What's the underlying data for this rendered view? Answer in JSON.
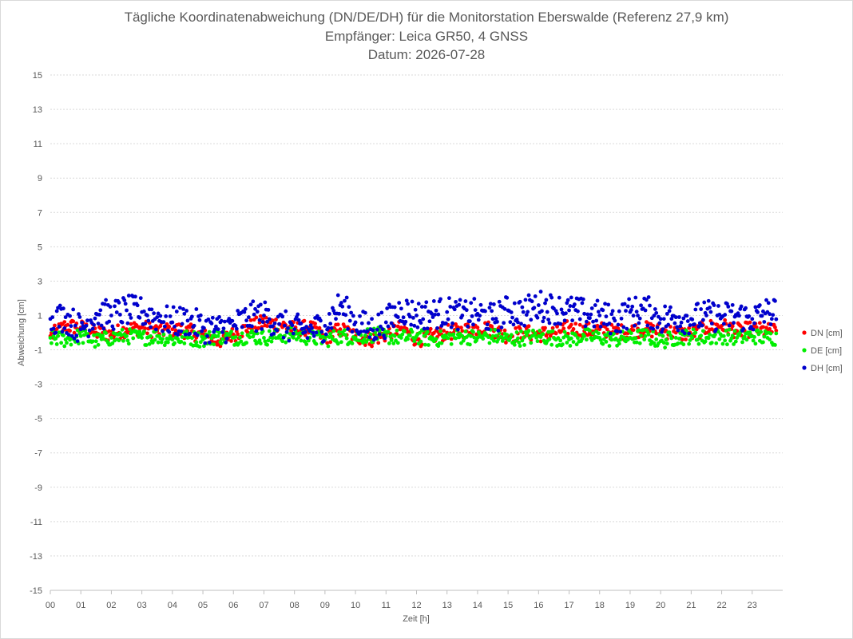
{
  "chart_data": {
    "type": "scatter",
    "title": "Tägliche Koordinatenabweichung (DN/DE/DH) für die Monitorstation Eberswalde (Referenz 27,9 km)",
    "subtitle": "Empfänger: Leica GR50, 4 GNSS",
    "date_line": "Datum: 2026-07-28",
    "xlabel": "Zeit [h]",
    "ylabel": "Abweichung [cm]",
    "xlim": [
      0,
      24
    ],
    "ylim": [
      -15,
      15
    ],
    "y_ticks": [
      15,
      13,
      11,
      9,
      7,
      5,
      3,
      1,
      -1,
      -3,
      -5,
      -7,
      -9,
      -11,
      -13,
      -15
    ],
    "x_tick_labels": [
      "00",
      "01",
      "02",
      "03",
      "04",
      "05",
      "06",
      "07",
      "08",
      "09",
      "10",
      "11",
      "12",
      "13",
      "14",
      "15",
      "16",
      "17",
      "18",
      "19",
      "20",
      "21",
      "22",
      "23"
    ],
    "grid": true,
    "legend_position": "right",
    "series": [
      {
        "name": "DN [cm]",
        "color": "#ff0000",
        "x": [
          0.0,
          0.5,
          1.0,
          1.5,
          2.0,
          2.5,
          3.0,
          3.5,
          4.0,
          4.5,
          5.0,
          5.5,
          6.0,
          6.5,
          7.0,
          7.5,
          8.0,
          8.5,
          9.0,
          9.5,
          10.0,
          10.5,
          11.0,
          11.5,
          12.0,
          12.5,
          13.0,
          13.5,
          14.0,
          14.5,
          15.0,
          15.5,
          16.0,
          16.5,
          17.0,
          17.5,
          18.0,
          18.5,
          19.0,
          19.5,
          20.0,
          20.5,
          21.0,
          21.5,
          22.0,
          22.5,
          23.0,
          23.5
        ],
        "y": [
          -0.2,
          0.4,
          0.3,
          0.0,
          -0.1,
          0.2,
          0.3,
          0.1,
          0.2,
          0.1,
          -0.2,
          -0.5,
          -0.1,
          0.3,
          0.6,
          0.5,
          0.2,
          0.3,
          -0.3,
          0.2,
          -0.2,
          -0.4,
          -0.1,
          0.3,
          -0.4,
          -0.2,
          0.0,
          0.1,
          0.3,
          0.2,
          -0.2,
          0.0,
          -0.1,
          0.0,
          0.3,
          0.1,
          0.2,
          0.0,
          0.1,
          0.2,
          0.1,
          0.0,
          -0.1,
          0.3,
          0.4,
          0.1,
          0.2,
          0.1
        ]
      },
      {
        "name": "DE [cm]",
        "color": "#00ee00",
        "x": [
          0.0,
          0.5,
          1.0,
          1.5,
          2.0,
          2.5,
          3.0,
          3.5,
          4.0,
          4.5,
          5.0,
          5.5,
          6.0,
          6.5,
          7.0,
          7.5,
          8.0,
          8.5,
          9.0,
          9.5,
          10.0,
          10.5,
          11.0,
          11.5,
          12.0,
          12.5,
          13.0,
          13.5,
          14.0,
          14.5,
          15.0,
          15.5,
          16.0,
          16.5,
          17.0,
          17.5,
          18.0,
          18.5,
          19.0,
          19.5,
          20.0,
          20.5,
          21.0,
          21.5,
          22.0,
          22.5,
          23.0,
          23.5
        ],
        "y": [
          -0.3,
          -0.4,
          -0.2,
          -0.5,
          -0.3,
          -0.2,
          -0.3,
          -0.2,
          -0.4,
          -0.3,
          -0.4,
          -0.2,
          -0.3,
          -0.2,
          -0.3,
          -0.2,
          -0.1,
          -0.3,
          -0.4,
          -0.2,
          -0.3,
          -0.1,
          -0.2,
          -0.3,
          -0.2,
          -0.4,
          -0.3,
          -0.2,
          -0.3,
          -0.2,
          -0.4,
          -0.3,
          -0.2,
          -0.3,
          -0.4,
          -0.2,
          -0.3,
          -0.4,
          -0.3,
          -0.2,
          -0.5,
          -0.3,
          -0.2,
          -0.3,
          -0.2,
          -0.3,
          -0.2,
          -0.3
        ]
      },
      {
        "name": "DH [cm]",
        "color": "#0000cc",
        "x": [
          0.0,
          0.5,
          1.0,
          1.5,
          2.0,
          2.5,
          3.0,
          3.5,
          4.0,
          4.5,
          5.0,
          5.5,
          6.0,
          6.5,
          7.0,
          7.5,
          8.0,
          8.5,
          9.0,
          9.5,
          10.0,
          10.5,
          11.0,
          11.5,
          12.0,
          12.5,
          13.0,
          13.5,
          14.0,
          14.5,
          15.0,
          15.5,
          16.0,
          16.5,
          17.0,
          17.5,
          18.0,
          18.5,
          19.0,
          19.5,
          20.0,
          20.5,
          21.0,
          21.5,
          22.0,
          22.5,
          23.0,
          23.5
        ],
        "y": [
          0.8,
          0.9,
          0.2,
          1.1,
          1.0,
          1.3,
          1.2,
          0.9,
          0.6,
          0.7,
          0.3,
          0.2,
          0.4,
          0.9,
          1.0,
          0.5,
          0.2,
          0.1,
          0.4,
          1.6,
          0.6,
          0.2,
          0.6,
          1.4,
          1.0,
          1.1,
          1.2,
          1.0,
          1.1,
          0.8,
          1.3,
          1.2,
          1.6,
          1.4,
          1.3,
          1.1,
          1.0,
          0.7,
          1.2,
          1.3,
          0.8,
          0.9,
          0.8,
          1.0,
          0.9,
          1.0,
          0.8,
          1.2
        ]
      }
    ]
  }
}
